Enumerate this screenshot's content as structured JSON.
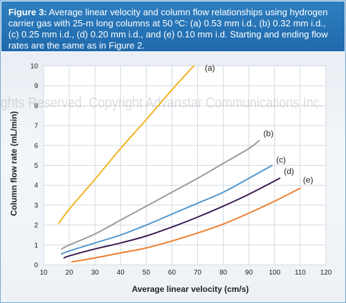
{
  "caption": {
    "label": "Figure 3:",
    "text": "Average linear velocity and column flow relationships using hydrogen carrier gas with 25-m long columns at 50 ºC: (a) 0.53 mm i.d., (b) 0.32 mm i.d., (c) 0.25 mm i.d., (d) 0.20 mm i.d., and (e) 0.10 mm i.d. Starting and ending flow rates are the same as in Figure 2."
  },
  "watermark": "ights Reserved. Copyright Advanstar Communications Inc.",
  "colors": {
    "caption_bg": "#1f69ac",
    "a": "#f2b21d",
    "b": "#9a9a9a",
    "c": "#4f97cf",
    "d": "#3a1a4f",
    "e": "#ed7d31"
  },
  "chart_data": {
    "type": "line",
    "title": "",
    "xlabel": "Average linear velocity (cm/s)",
    "ylabel": "Column flow rate (mL/min)",
    "xlim": [
      10,
      120
    ],
    "ylim": [
      0,
      10
    ],
    "xticks": [
      10,
      20,
      30,
      40,
      50,
      60,
      70,
      80,
      90,
      100,
      110,
      120
    ],
    "yticks": [
      0,
      1,
      2,
      3,
      4,
      5,
      6,
      7,
      8,
      9,
      10
    ],
    "grid": true,
    "series": [
      {
        "name": "(a)",
        "color": "#f2b21d",
        "x": [
          16,
          20,
          30,
          40,
          50,
          60,
          68.5
        ],
        "y": [
          2.1,
          2.8,
          4.3,
          5.85,
          7.3,
          8.8,
          10
        ]
      },
      {
        "name": "(b)",
        "color": "#9a9a9a",
        "x": [
          17,
          20,
          30,
          40,
          50,
          60,
          70,
          80,
          90,
          94
        ],
        "y": [
          0.8,
          1.0,
          1.55,
          2.25,
          2.95,
          3.65,
          4.35,
          5.1,
          5.85,
          6.25
        ]
      },
      {
        "name": "(c)",
        "color": "#4f97cf",
        "x": [
          17,
          20,
          30,
          40,
          50,
          60,
          70,
          80,
          90,
          99
        ],
        "y": [
          0.55,
          0.7,
          1.1,
          1.5,
          2.0,
          2.55,
          3.1,
          3.65,
          4.35,
          5.0
        ]
      },
      {
        "name": "(d)",
        "color": "#3a1a4f",
        "x": [
          18,
          20,
          30,
          40,
          50,
          60,
          70,
          80,
          90,
          102
        ],
        "y": [
          0.35,
          0.45,
          0.8,
          1.1,
          1.45,
          1.9,
          2.4,
          2.95,
          3.55,
          4.35
        ]
      },
      {
        "name": "(e)",
        "color": "#ed7d31",
        "x": [
          21,
          30,
          40,
          50,
          60,
          70,
          80,
          90,
          100,
          110
        ],
        "y": [
          0.15,
          0.35,
          0.6,
          0.85,
          1.2,
          1.6,
          2.05,
          2.6,
          3.2,
          3.85
        ]
      }
    ]
  }
}
